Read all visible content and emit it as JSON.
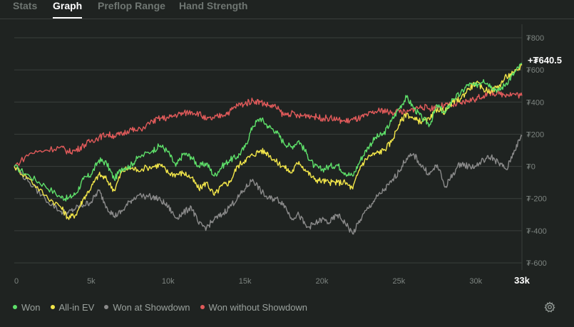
{
  "tabs": [
    {
      "label": "Stats",
      "active": false
    },
    {
      "label": "Graph",
      "active": true
    },
    {
      "label": "Preflop Range",
      "active": false
    },
    {
      "label": "Hand Strength",
      "active": false
    }
  ],
  "colors": {
    "background": "#1f2321",
    "won": "#5ee06a",
    "allin_ev": "#f2e64a",
    "won_at_showdown": "#8a8a8a",
    "won_without_showdown": "#e05a5a",
    "grid": "#3a3f3c"
  },
  "final_value_label": "+₮640.5",
  "settings_icon": "gear-icon",
  "legend": [
    {
      "label": "Won",
      "color": "#5ee06a"
    },
    {
      "label": "All-in EV",
      "color": "#f2e64a"
    },
    {
      "label": "Won at Showdown",
      "color": "#8a8a8a"
    },
    {
      "label": "Won without Showdown",
      "color": "#e05a5a"
    }
  ],
  "chart_data": {
    "type": "line",
    "xlim": [
      0,
      33000
    ],
    "ylim": [
      -600,
      800
    ],
    "x_ticks": [
      {
        "value": 0,
        "label": "0"
      },
      {
        "value": 5000,
        "label": "5k"
      },
      {
        "value": 10000,
        "label": "10k"
      },
      {
        "value": 15000,
        "label": "15k"
      },
      {
        "value": 20000,
        "label": "20k"
      },
      {
        "value": 25000,
        "label": "25k"
      },
      {
        "value": 30000,
        "label": "30k"
      },
      {
        "value": 33000,
        "label": "33k",
        "highlight": true
      }
    ],
    "y_ticks": [
      {
        "value": 800,
        "label": "₮800"
      },
      {
        "value": 600,
        "label": "₮600"
      },
      {
        "value": 400,
        "label": "₮400"
      },
      {
        "value": 200,
        "label": "₮200"
      },
      {
        "value": 0,
        "label": "₮0"
      },
      {
        "value": -200,
        "label": "₮-200"
      },
      {
        "value": -400,
        "label": "₮-400"
      },
      {
        "value": -600,
        "label": "₮-600"
      }
    ],
    "grid": true,
    "x": [
      0,
      1000,
      2000,
      3000,
      3500,
      4000,
      4500,
      5000,
      5500,
      6000,
      6500,
      7000,
      7500,
      8000,
      9000,
      9500,
      10000,
      10500,
      11000,
      11500,
      12000,
      12500,
      13000,
      13500,
      14000,
      14500,
      15000,
      15500,
      16000,
      16500,
      17000,
      17500,
      18000,
      18500,
      19000,
      19500,
      20000,
      20500,
      21000,
      21500,
      22000,
      22500,
      23000,
      23500,
      24000,
      24500,
      25000,
      25500,
      26000,
      26500,
      27000,
      27500,
      28000,
      28500,
      29000,
      29500,
      30000,
      30500,
      31000,
      31500,
      32000,
      32500,
      33000
    ],
    "series": [
      {
        "name": "Won",
        "color": "#5ee06a",
        "values": [
          0,
          -60,
          -120,
          -190,
          -200,
          -170,
          -80,
          -50,
          40,
          20,
          -80,
          -10,
          0,
          50,
          100,
          130,
          90,
          0,
          80,
          60,
          0,
          20,
          -60,
          0,
          40,
          60,
          120,
          250,
          300,
          250,
          220,
          150,
          120,
          160,
          80,
          0,
          -20,
          0,
          10,
          -40,
          -60,
          40,
          120,
          180,
          200,
          280,
          360,
          430,
          360,
          300,
          260,
          380,
          330,
          420,
          450,
          510,
          500,
          540,
          500,
          470,
          520,
          580,
          640
        ]
      },
      {
        "name": "All-in EV",
        "color": "#f2e64a",
        "values": [
          0,
          -80,
          -180,
          -250,
          -320,
          -300,
          -200,
          -130,
          -50,
          -80,
          -150,
          -30,
          -10,
          -20,
          0,
          10,
          -40,
          -50,
          -40,
          -70,
          -140,
          -100,
          -180,
          -120,
          -100,
          0,
          40,
          70,
          100,
          80,
          30,
          0,
          -40,
          30,
          -30,
          -80,
          -90,
          -100,
          -100,
          -100,
          -140,
          0,
          60,
          80,
          100,
          150,
          260,
          330,
          290,
          280,
          290,
          360,
          340,
          400,
          420,
          480,
          520,
          480,
          470,
          500,
          560,
          580,
          630
        ]
      },
      {
        "name": "Won at Showdown",
        "color": "#8a8a8a",
        "values": [
          0,
          -100,
          -200,
          -280,
          -290,
          -260,
          -240,
          -220,
          -150,
          -250,
          -310,
          -280,
          -220,
          -180,
          -190,
          -210,
          -250,
          -320,
          -290,
          -250,
          -360,
          -380,
          -330,
          -300,
          -250,
          -200,
          -140,
          -80,
          -150,
          -200,
          -200,
          -230,
          -320,
          -300,
          -380,
          -360,
          -330,
          -350,
          -300,
          -350,
          -420,
          -330,
          -260,
          -200,
          -150,
          -100,
          -30,
          50,
          70,
          0,
          -50,
          10,
          -130,
          -50,
          20,
          0,
          0,
          40,
          60,
          20,
          -20,
          100,
          190
        ]
      },
      {
        "name": "Won without Showdown",
        "color": "#e05a5a",
        "values": [
          0,
          80,
          100,
          120,
          90,
          100,
          130,
          160,
          180,
          200,
          190,
          200,
          230,
          220,
          280,
          300,
          300,
          320,
          330,
          340,
          330,
          290,
          300,
          320,
          340,
          380,
          390,
          410,
          400,
          380,
          370,
          320,
          330,
          310,
          320,
          310,
          300,
          300,
          290,
          280,
          290,
          300,
          320,
          340,
          350,
          330,
          350,
          330,
          360,
          370,
          360,
          370,
          380,
          380,
          390,
          410,
          420,
          440,
          460,
          450,
          450,
          450,
          440
        ]
      }
    ]
  }
}
